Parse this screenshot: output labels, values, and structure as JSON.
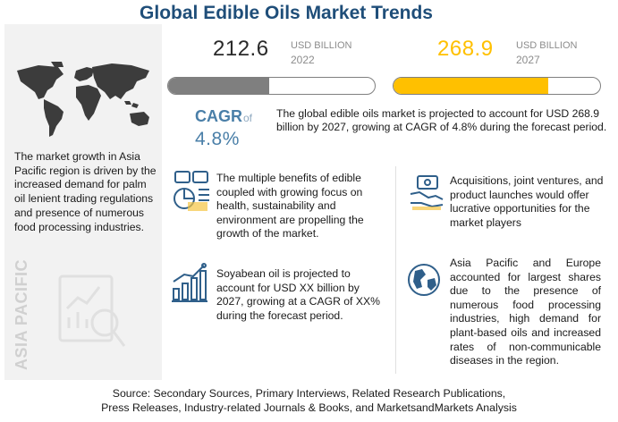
{
  "title": "Global Edible Oils Market Trends",
  "left_panel": {
    "region_label": "ASIA PACIFIC",
    "text": "The market growth in Asia Pacific region is driven by the increased demand for palm oil lenient trading regulations and presence of numerous food processing industries."
  },
  "metrics": [
    {
      "value": "212.6",
      "unit": "USD BILLION",
      "year": "2022",
      "bar_fill_pct": 49,
      "color": "#7f7f7f"
    },
    {
      "value": "268.9",
      "unit": "USD BILLION",
      "year": "2027",
      "bar_fill_pct": 75,
      "color": "#ffc000"
    }
  ],
  "cagr": {
    "label": "CAGR",
    "of": "of",
    "value": "4.8%",
    "text": "The global edible oils market is projected to account for USD 268.9 billion by 2027, growing at CAGR of 4.8% during the forecast period."
  },
  "cards": {
    "benefits": "The multiple benefits of edible coupled with growing focus on health, sustainability and environment are propelling the growth of the market.",
    "acquisitions": "Acquisitions, joint ventures, and product launches would offer lucrative opportunities for the market players",
    "soyabean": "Soyabean oil is projected to account for USD XX billion by 2027, growing at a CAGR of XX% during the forecast period.",
    "asia_europe": "Asia Pacific and Europe accounted for largest shares due to the presence of numerous food processing industries, high demand for plant-based oils and increased rates of non-communicable diseases in the region."
  },
  "source": {
    "line1": "Source: Secondary Sources, Primary Interviews, Related Research Publications,",
    "line2": "Press Releases, Industry-related Journals & Books, and MarketsandMarkets Analysis"
  },
  "colors": {
    "title": "#1f4e79",
    "accent_blue": "#4a7fa8",
    "accent_yellow": "#ffc000",
    "bar_gray": "#7f7f7f"
  }
}
